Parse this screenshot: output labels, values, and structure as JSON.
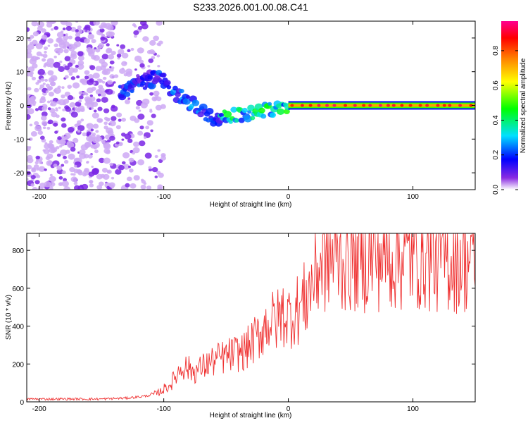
{
  "figure_title": "S233.2026.001.00.08.C41",
  "colorbar": {
    "label": "Normalized spectral amplitude",
    "ticks": [
      0.0,
      0.2,
      0.4,
      0.6,
      0.8
    ],
    "tick_labels": [
      "0.0",
      "0.2",
      "0.4",
      "0.6",
      "0.8"
    ],
    "range": [
      0,
      0.97
    ]
  },
  "chart_data": [
    {
      "type": "heatmap",
      "title": "S233.2026.001.00.08.C41",
      "xlabel": "Height of straight line (km)",
      "ylabel": "Frequency (Hz)",
      "xlim": [
        -210,
        150
      ],
      "ylim": [
        -25,
        25
      ],
      "x_ticks": [
        -200,
        -100,
        0,
        100
      ],
      "x_tick_labels": [
        "-200",
        "-100",
        "0",
        "100"
      ],
      "y_ticks": [
        -20,
        -10,
        0,
        10,
        20
      ],
      "y_tick_labels": [
        "-20",
        "-10",
        "0",
        "10",
        "20"
      ],
      "colorbar_label": "Normalized spectral amplitude",
      "colormap": "rainbow (purple to red)",
      "features": [
        {
          "name": "noise field",
          "x_range": [
            -210,
            -100
          ],
          "freq_range": [
            -25,
            25
          ],
          "amplitude": 0.05
        },
        {
          "name": "rising arc",
          "x_range": [
            -135,
            -100
          ],
          "freq_center": [
            4,
            9
          ],
          "amplitude": 0.2
        },
        {
          "name": "descending dip",
          "x_range": [
            -100,
            -55
          ],
          "freq_center": [
            6,
            -5
          ],
          "amplitude": 0.25
        },
        {
          "name": "converging track",
          "x_range": [
            -55,
            0
          ],
          "freq_center": [
            -4,
            0
          ],
          "amplitude": 0.4
        },
        {
          "name": "steady carrier",
          "x_range": [
            0,
            150
          ],
          "freq_center": [
            0,
            0
          ],
          "amplitude": 0.95
        }
      ]
    },
    {
      "type": "line",
      "xlabel": "Height of straight line (km)",
      "ylabel": "SNR (10 * v/v)",
      "xlim": [
        -210,
        150
      ],
      "ylim": [
        0,
        890
      ],
      "x_ticks": [
        -200,
        -100,
        0,
        100
      ],
      "x_tick_labels": [
        "-200",
        "-100",
        "0",
        "100"
      ],
      "y_ticks": [
        0,
        200,
        400,
        600,
        800
      ],
      "y_tick_labels": [
        "0",
        "200",
        "400",
        "600",
        "800"
      ],
      "series": [
        {
          "name": "SNR",
          "color": "#ef3030",
          "x": [
            -210,
            -180,
            -150,
            -130,
            -115,
            -105,
            -95,
            -85,
            -75,
            -65,
            -55,
            -45,
            -35,
            -25,
            -20,
            -15,
            -10,
            -5,
            0,
            5,
            10,
            15,
            20,
            25,
            30,
            40,
            60,
            80,
            100,
            110,
            120,
            140,
            150
          ],
          "values": [
            15,
            15,
            15,
            20,
            30,
            45,
            90,
            190,
            160,
            200,
            230,
            250,
            270,
            340,
            390,
            430,
            420,
            470,
            450,
            480,
            500,
            560,
            650,
            720,
            760,
            770,
            775,
            780,
            780,
            790,
            770,
            765,
            760
          ]
        }
      ]
    }
  ]
}
